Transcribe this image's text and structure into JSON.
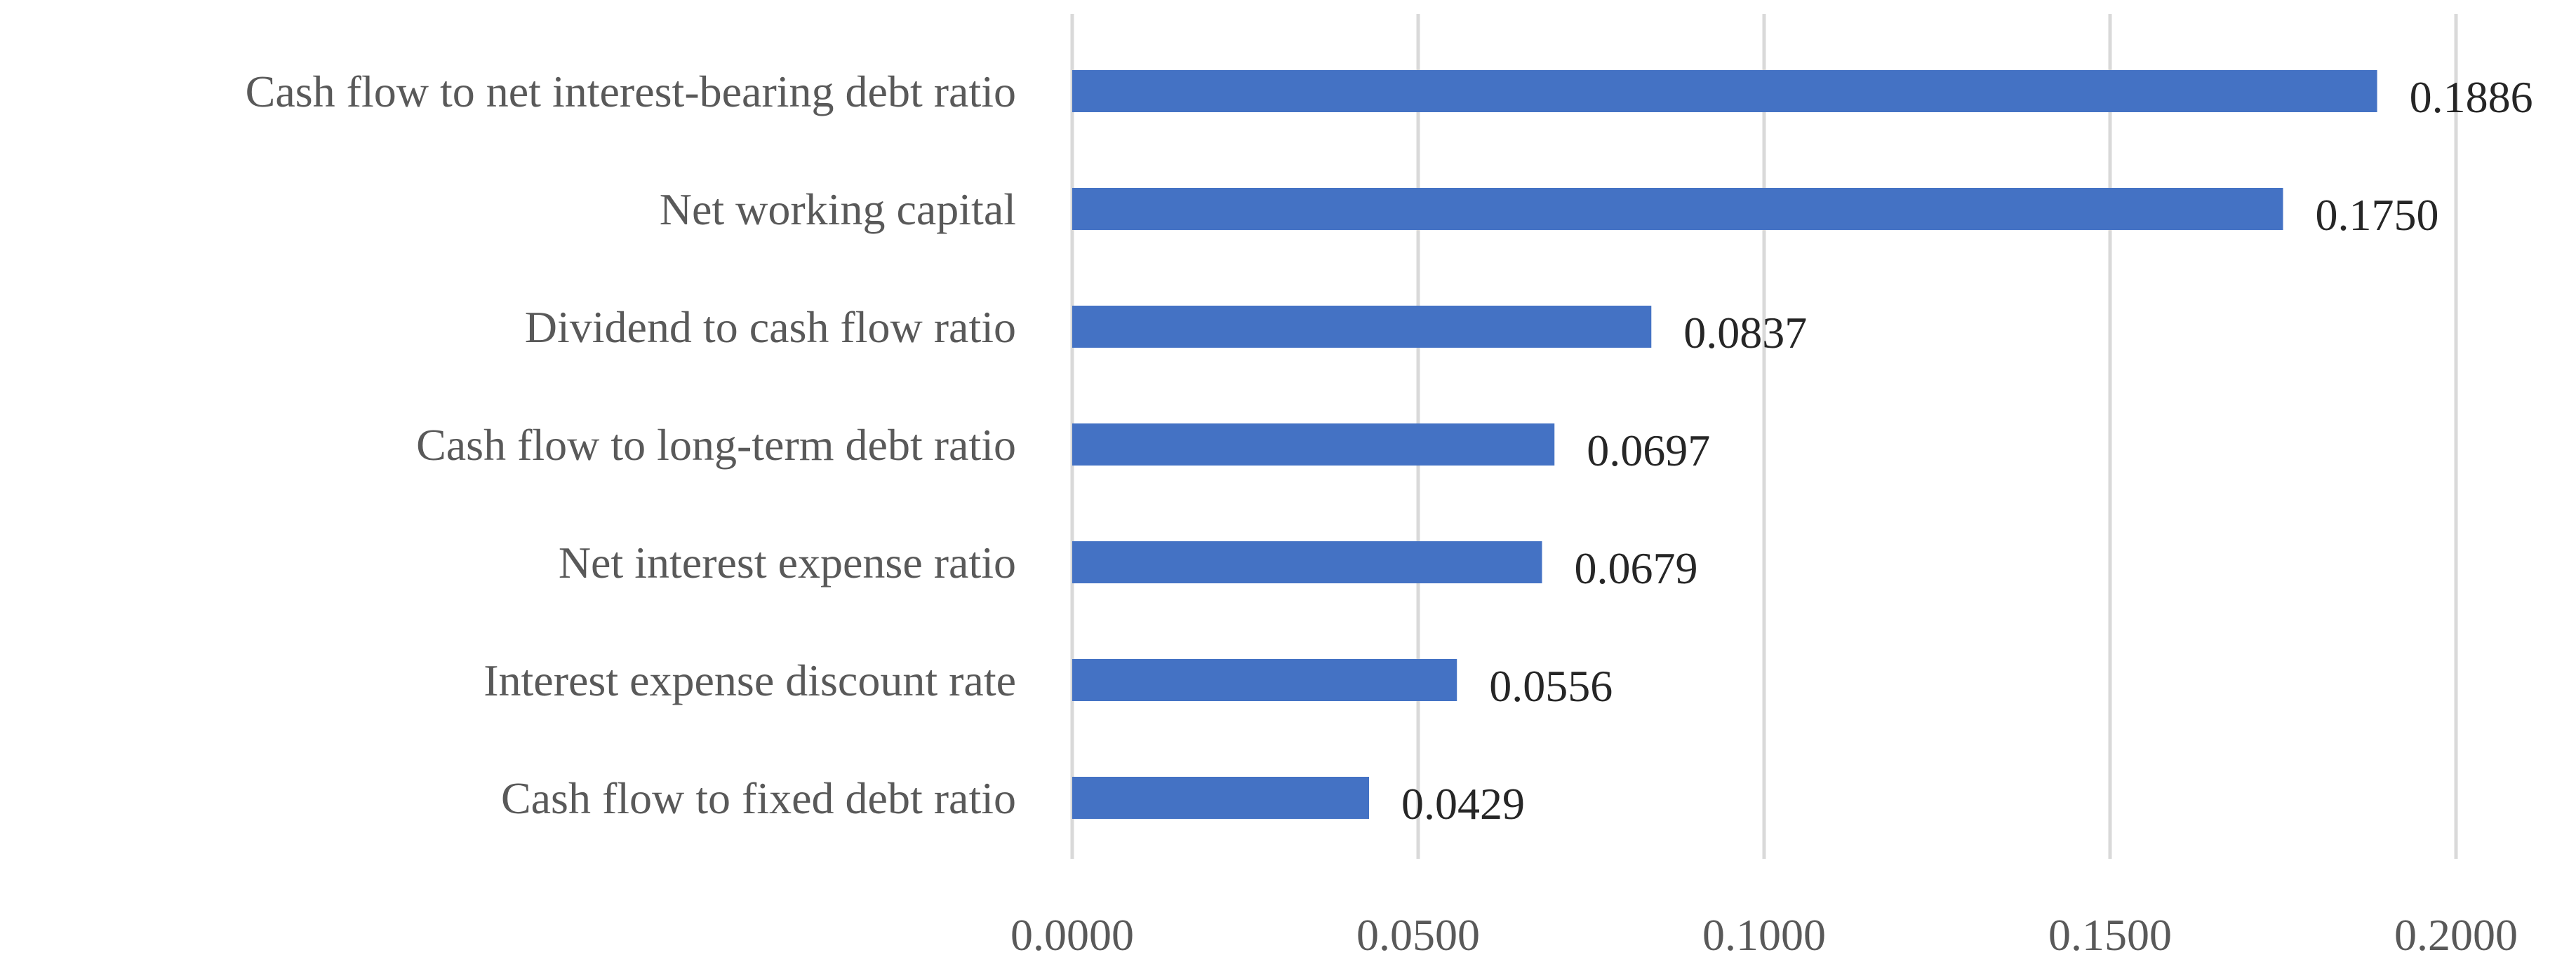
{
  "chart_data": {
    "type": "bar",
    "orientation": "horizontal",
    "title": "",
    "xlabel": "",
    "ylabel": "",
    "categories": [
      "Cash flow to net interest-bearing debt ratio",
      "Net working capital",
      "Dividend to cash flow ratio",
      "Cash flow to long-term debt ratio",
      "Net interest expense ratio",
      "Interest expense discount rate",
      "Cash flow to fixed debt ratio"
    ],
    "values": [
      0.1886,
      0.175,
      0.0837,
      0.0697,
      0.0679,
      0.0556,
      0.0429
    ],
    "data_labels": [
      "0.1886",
      "0.1750",
      "0.0837",
      "0.0697",
      "0.0679",
      "0.0556",
      "0.0429"
    ],
    "xlim": [
      0,
      0.2
    ],
    "x_ticks": [
      0,
      0.05,
      0.1,
      0.15,
      0.2
    ],
    "x_tick_labels": [
      "0.0000",
      "0.0500",
      "0.1000",
      "0.1500",
      "0.2000"
    ],
    "grid": "vertical",
    "legend": "none",
    "colors": {
      "bar": "#4472C4",
      "grid": "#D9D9D9",
      "category_label": "#595959",
      "tick_label": "#595959",
      "data_label": "#262626"
    }
  }
}
